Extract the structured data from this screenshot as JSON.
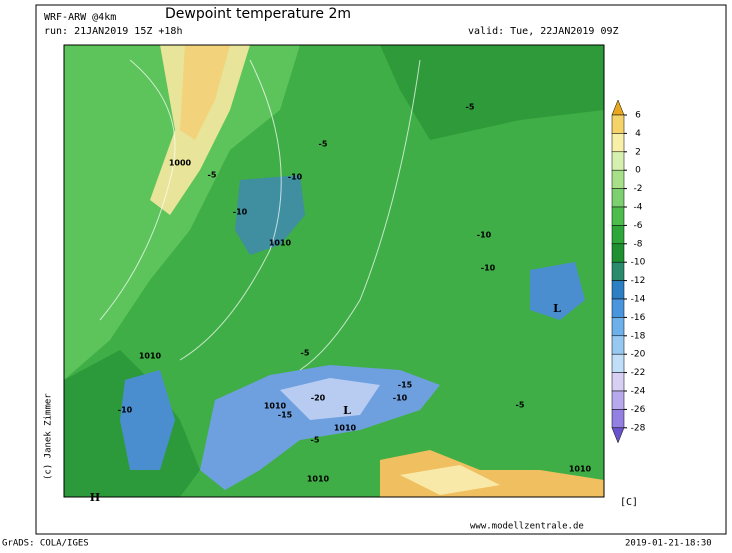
{
  "header": {
    "model": "WRF-ARW @4km",
    "title": "Dewpoint temperature 2m",
    "run": "run: 21JAN2019 15Z +18h",
    "valid": "valid: Tue, 22JAN2019 09Z"
  },
  "colorbar": {
    "unit": "[C]",
    "levels": [
      6,
      4,
      2,
      0,
      -2,
      -4,
      -6,
      -8,
      -10,
      -12,
      -14,
      -16,
      -18,
      -20,
      -22,
      -24,
      -26,
      -28
    ],
    "colors": [
      "#e8a81e",
      "#f4d36a",
      "#f8efa8",
      "#d6f0b0",
      "#a8e08a",
      "#7cd070",
      "#4cbc4c",
      "#2ea63a",
      "#1e9030",
      "#2a8a6c",
      "#2d7fc4",
      "#4a96de",
      "#6eb0ea",
      "#96c8f2",
      "#c0def8",
      "#d8d0f4",
      "#b8a8ec",
      "#9480e0",
      "#6a52cc"
    ]
  },
  "map_labels": [
    "1000",
    "1010",
    "1010",
    "1010",
    "1010",
    "1010",
    "1010",
    "L",
    "L",
    "H",
    "-5",
    "-5",
    "-5",
    "-5",
    "-5",
    "-5",
    "-10",
    "-10",
    "-10",
    "-10",
    "-10",
    "-10",
    "-15",
    "-15",
    "-20"
  ],
  "credit": "(c) Janek Zimmer",
  "website": "www.modellzentrale.de",
  "footer": {
    "left": "GrADS: COLA/IGES",
    "right": "2019-01-21-18:30"
  }
}
